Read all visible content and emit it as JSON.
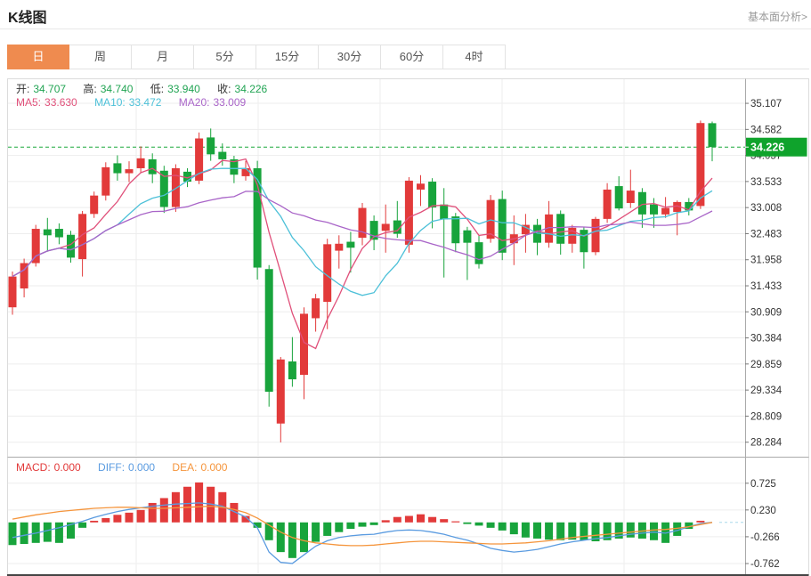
{
  "header": {
    "title": "K线图",
    "link": "基本面分析>"
  },
  "tabs": {
    "items": [
      "日",
      "周",
      "月",
      "5分",
      "15分",
      "30分",
      "60分",
      "4时"
    ],
    "selected": 0
  },
  "ohlc": {
    "pairs": [
      {
        "label": "开:",
        "value": "34.707"
      },
      {
        "label": "高:",
        "value": "34.740"
      },
      {
        "label": "低:",
        "value": "33.940"
      },
      {
        "label": "收:",
        "value": "34.226"
      }
    ]
  },
  "ma": {
    "items": [
      {
        "label": "MA5:",
        "value": "33.630"
      },
      {
        "label": "MA10:",
        "value": "33.472"
      },
      {
        "label": "MA20:",
        "value": "33.009"
      }
    ]
  },
  "macd_header": {
    "items": [
      {
        "label": "MACD:",
        "value": "0.000"
      },
      {
        "label": "DIFF:",
        "value": "0.000"
      },
      {
        "label": "DEA:",
        "value": "0.000"
      }
    ]
  },
  "price_tag": "34.226",
  "colors": {
    "up": "#e23a3a",
    "down": "#18a43c",
    "tag_bg": "#0fa32c",
    "tag_text": "#ffffff",
    "ma5": "#e0507a",
    "ma10": "#4cc0d8",
    "ma20": "#a965c8",
    "diff": "#5a9be0",
    "dea": "#f5953c",
    "accent_tab": "#ef8b4f",
    "dashed_line": "#1aa83a",
    "ohlc_value": "#21a453",
    "axis_text": "#333333",
    "grid": "#ededed"
  },
  "chart_data": {
    "type": "candlestick+macd",
    "title": "K线图",
    "price_axis_ticks": [
      "35.107",
      "34.582",
      "34.057",
      "33.533",
      "33.008",
      "32.483",
      "31.958",
      "31.433",
      "30.909",
      "30.384",
      "29.859",
      "29.334",
      "28.809",
      "28.284"
    ],
    "macd_axis_ticks": [
      "0.725",
      "0.230",
      "-0.266",
      "-0.762"
    ],
    "current_price": 34.226,
    "price_range": [
      28.01,
      35.61
    ],
    "macd_range": [
      -0.96,
      1.2
    ],
    "ma_periods": [
      5,
      10,
      20
    ],
    "candles_ohlc": [
      [
        31.0,
        31.72,
        30.85,
        31.62
      ],
      [
        31.38,
        31.98,
        31.2,
        31.89
      ],
      [
        31.89,
        32.66,
        31.82,
        32.58
      ],
      [
        32.57,
        32.8,
        32.12,
        32.45
      ],
      [
        32.58,
        32.69,
        32.27,
        32.41
      ],
      [
        32.46,
        32.54,
        31.9,
        32.0
      ],
      [
        31.97,
        32.94,
        31.62,
        32.88
      ],
      [
        32.88,
        33.33,
        32.8,
        33.25
      ],
      [
        33.25,
        33.92,
        33.15,
        33.82
      ],
      [
        33.9,
        34.06,
        33.55,
        33.7
      ],
      [
        33.7,
        33.94,
        33.52,
        33.78
      ],
      [
        33.8,
        34.24,
        33.7,
        34.0
      ],
      [
        33.98,
        34.1,
        33.5,
        33.68
      ],
      [
        33.75,
        33.85,
        32.9,
        33.02
      ],
      [
        33.02,
        33.88,
        32.92,
        33.8
      ],
      [
        33.73,
        33.8,
        33.42,
        33.53
      ],
      [
        33.55,
        34.52,
        33.48,
        34.4
      ],
      [
        34.42,
        34.6,
        33.95,
        34.08
      ],
      [
        34.13,
        34.3,
        33.85,
        33.98
      ],
      [
        33.98,
        34.05,
        33.5,
        33.67
      ],
      [
        33.64,
        33.95,
        33.55,
        33.8
      ],
      [
        33.8,
        33.95,
        31.56,
        31.8
      ],
      [
        31.77,
        31.85,
        29.0,
        29.3
      ],
      [
        28.66,
        30.0,
        28.28,
        29.95
      ],
      [
        29.91,
        30.4,
        29.4,
        29.55
      ],
      [
        29.64,
        31.0,
        29.15,
        30.87
      ],
      [
        30.78,
        31.27,
        30.51,
        31.18
      ],
      [
        31.11,
        32.38,
        30.56,
        32.27
      ],
      [
        32.14,
        32.45,
        31.78,
        32.28
      ],
      [
        32.32,
        32.52,
        31.7,
        32.2
      ],
      [
        32.4,
        33.1,
        32.25,
        33.0
      ],
      [
        32.74,
        32.85,
        32.15,
        32.36
      ],
      [
        32.54,
        33.07,
        32.1,
        32.68
      ],
      [
        32.75,
        33.14,
        32.4,
        32.48
      ],
      [
        32.26,
        33.62,
        32.1,
        33.55
      ],
      [
        33.37,
        33.66,
        33.04,
        33.49
      ],
      [
        33.53,
        33.6,
        32.59,
        33.01
      ],
      [
        33.07,
        33.4,
        31.6,
        32.77
      ],
      [
        32.83,
        32.9,
        32.11,
        32.29
      ],
      [
        32.55,
        32.62,
        31.55,
        32.3
      ],
      [
        32.31,
        32.45,
        31.78,
        31.87
      ],
      [
        32.38,
        33.26,
        32.3,
        33.16
      ],
      [
        33.18,
        33.35,
        31.95,
        32.1
      ],
      [
        32.29,
        32.85,
        31.85,
        32.47
      ],
      [
        32.47,
        32.88,
        32.1,
        32.66
      ],
      [
        32.66,
        32.78,
        32.05,
        32.3
      ],
      [
        32.3,
        33.14,
        32.2,
        32.87
      ],
      [
        32.88,
        32.95,
        32.06,
        32.28
      ],
      [
        32.28,
        32.66,
        32.1,
        32.6
      ],
      [
        32.56,
        32.62,
        31.78,
        32.11
      ],
      [
        32.11,
        32.82,
        32.05,
        32.78
      ],
      [
        32.78,
        33.5,
        32.7,
        33.37
      ],
      [
        33.44,
        33.64,
        32.95,
        32.99
      ],
      [
        33.1,
        33.77,
        33.0,
        33.35
      ],
      [
        33.32,
        33.4,
        32.6,
        32.87
      ],
      [
        33.07,
        33.2,
        32.6,
        32.87
      ],
      [
        32.87,
        33.22,
        32.8,
        33.0
      ],
      [
        32.92,
        33.15,
        32.45,
        33.12
      ],
      [
        33.12,
        33.2,
        32.85,
        32.95
      ],
      [
        33.04,
        34.76,
        32.98,
        34.71
      ],
      [
        34.707,
        34.74,
        33.94,
        34.226
      ]
    ],
    "macd": {
      "hist": [
        -0.42,
        -0.4,
        -0.38,
        -0.36,
        -0.38,
        -0.3,
        -0.1,
        0.03,
        0.08,
        0.14,
        0.18,
        0.23,
        0.36,
        0.45,
        0.56,
        0.66,
        0.74,
        0.66,
        0.56,
        0.36,
        0.12,
        -0.1,
        -0.33,
        -0.55,
        -0.66,
        -0.55,
        -0.36,
        -0.25,
        -0.18,
        -0.12,
        -0.08,
        -0.05,
        0.04,
        0.1,
        0.12,
        0.15,
        0.1,
        0.06,
        0.02,
        -0.03,
        -0.06,
        -0.1,
        -0.15,
        -0.22,
        -0.28,
        -0.3,
        -0.32,
        -0.33,
        -0.32,
        -0.33,
        -0.35,
        -0.33,
        -0.3,
        -0.28,
        -0.3,
        -0.33,
        -0.38,
        -0.25,
        -0.12,
        0.03,
        0.0
      ],
      "diff": [
        -0.28,
        -0.24,
        -0.2,
        -0.15,
        -0.1,
        -0.04,
        0.02,
        0.09,
        0.15,
        0.2,
        0.24,
        0.27,
        0.3,
        0.32,
        0.34,
        0.35,
        0.36,
        0.34,
        0.3,
        0.2,
        0.1,
        -0.1,
        -0.55,
        -0.74,
        -0.76,
        -0.6,
        -0.44,
        -0.34,
        -0.28,
        -0.25,
        -0.23,
        -0.22,
        -0.18,
        -0.15,
        -0.14,
        -0.15,
        -0.18,
        -0.22,
        -0.28,
        -0.33,
        -0.4,
        -0.48,
        -0.52,
        -0.55,
        -0.53,
        -0.5,
        -0.45,
        -0.4,
        -0.36,
        -0.33,
        -0.3,
        -0.28,
        -0.25,
        -0.22,
        -0.2,
        -0.18,
        -0.2,
        -0.15,
        -0.08,
        -0.02,
        0.0
      ],
      "dea": [
        0.06,
        0.1,
        0.14,
        0.17,
        0.2,
        0.22,
        0.24,
        0.26,
        0.27,
        0.28,
        0.28,
        0.27,
        0.26,
        0.26,
        0.27,
        0.28,
        0.29,
        0.3,
        0.28,
        0.24,
        0.18,
        0.08,
        -0.05,
        -0.18,
        -0.28,
        -0.34,
        -0.38,
        -0.4,
        -0.42,
        -0.43,
        -0.43,
        -0.42,
        -0.4,
        -0.38,
        -0.36,
        -0.35,
        -0.35,
        -0.36,
        -0.37,
        -0.38,
        -0.39,
        -0.4,
        -0.4,
        -0.39,
        -0.38,
        -0.36,
        -0.34,
        -0.31,
        -0.28,
        -0.26,
        -0.24,
        -0.22,
        -0.2,
        -0.18,
        -0.16,
        -0.14,
        -0.13,
        -0.11,
        -0.08,
        -0.04,
        0.0
      ]
    }
  }
}
